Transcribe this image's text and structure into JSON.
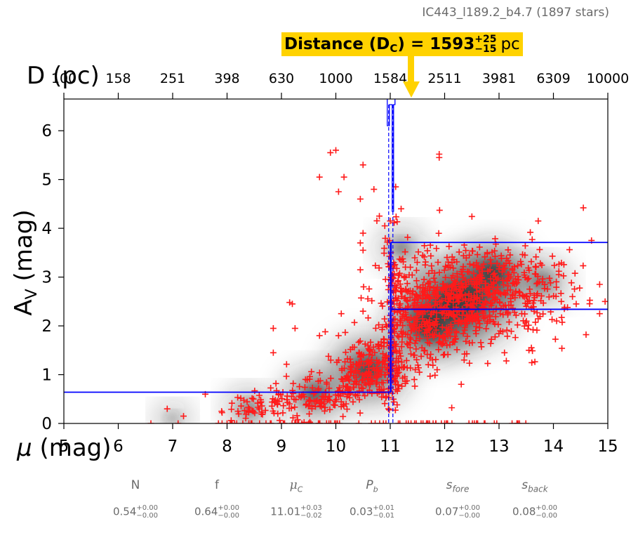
{
  "title": "IC443_l189.2_b4.7 (1897 stars)",
  "distance_label": {
    "text": "Distance (D",
    "sub": "C",
    "eq": ") = 1593",
    "plus": "+25",
    "minus": "−15",
    "unit": "pc"
  },
  "stats": [
    {
      "name": "N",
      "italic": false,
      "value": "0.54",
      "plus": "+0.00",
      "minus": "−0.00"
    },
    {
      "name": "f",
      "italic": false,
      "value": "0.64",
      "plus": "+0.00",
      "minus": "−0.00"
    },
    {
      "name": "μC",
      "italic": true,
      "value": "11.01",
      "plus": "+0.03",
      "minus": "−0.02"
    },
    {
      "name": "Pb",
      "italic": true,
      "value": "0.03",
      "plus": "+0.01",
      "minus": "−0.01"
    },
    {
      "name": "sfore",
      "italic": true,
      "value": "0.07",
      "plus": "+0.00",
      "minus": "−0.00"
    },
    {
      "name": "sback",
      "italic": true,
      "value": "0.08",
      "plus": "+0.00",
      "minus": "−0.00"
    }
  ],
  "colors": {
    "points": "#ff1a1a",
    "fit_lines": "#0000ff",
    "label_box": "#ffd200",
    "arrow": "#ffd200",
    "density": "#1a1a1a",
    "secondary_text": "#6b6b6b"
  },
  "chart_data": {
    "type": "scatter",
    "title": "IC443_l189.2_b4.7 (1897 stars)",
    "xlabel": "μ (mag)",
    "ylabel": "AV (mag)",
    "top_xlabel": "D (pc)",
    "xlim": [
      5,
      15
    ],
    "ylim": [
      0,
      6.65
    ],
    "x_ticks": [
      5,
      6,
      7,
      8,
      9,
      10,
      11,
      12,
      13,
      14,
      15
    ],
    "x_tick_labels": [
      "5",
      "6",
      "7",
      "8",
      "9",
      "10",
      "11",
      "12",
      "13",
      "14",
      "15"
    ],
    "y_ticks": [
      0,
      1,
      2,
      3,
      4,
      5,
      6
    ],
    "y_tick_labels": [
      "0",
      "1",
      "2",
      "3",
      "4",
      "5",
      "6"
    ],
    "top_tick_labels": [
      "100",
      "158",
      "251",
      "398",
      "630",
      "1000",
      "1584",
      "2511",
      "3981",
      "6309",
      "10000"
    ],
    "distance_modulus_cloud": 11.01,
    "distance_pc": 1593,
    "foreground_av": 0.64,
    "background_av_low": 2.34,
    "background_av_high": 3.71,
    "n_stars": 1897,
    "density_clusters": [
      {
        "x": 10.6,
        "y": 1.1,
        "w": 0.7
      },
      {
        "x": 12.3,
        "y": 2.5,
        "w": 1.0
      },
      {
        "x": 11.7,
        "y": 2.0,
        "w": 0.7
      },
      {
        "x": 9.6,
        "y": 0.6,
        "w": 0.5
      },
      {
        "x": 12.9,
        "y": 3.1,
        "w": 0.6
      },
      {
        "x": 8.4,
        "y": 0.3,
        "w": 0.35
      },
      {
        "x": 13.8,
        "y": 2.9,
        "w": 0.4
      },
      {
        "x": 7.0,
        "y": 0.1,
        "w": 0.25
      },
      {
        "x": 11.2,
        "y": 3.6,
        "w": 0.35
      }
    ],
    "points": [
      [
        9.9,
        5.55
      ],
      [
        10.0,
        5.6
      ],
      [
        9.7,
        5.05
      ],
      [
        10.15,
        5.05
      ],
      [
        10.5,
        5.3
      ],
      [
        10.7,
        4.8
      ],
      [
        10.45,
        4.6
      ],
      [
        10.05,
        4.75
      ],
      [
        11.9,
        5.45
      ],
      [
        11.9,
        5.52
      ],
      [
        14.55,
        4.42
      ],
      [
        13.72,
        4.15
      ],
      [
        10.45,
        3.7
      ],
      [
        10.5,
        3.9
      ],
      [
        10.5,
        3.55
      ],
      [
        10.45,
        3.15
      ],
      [
        9.15,
        2.48
      ],
      [
        9.2,
        2.45
      ],
      [
        9.25,
        1.95
      ],
      [
        8.85,
        1.95
      ],
      [
        8.85,
        1.45
      ],
      [
        9.7,
        1.8
      ],
      [
        10.1,
        2.25
      ],
      [
        10.5,
        2.3
      ],
      [
        6.9,
        0.3
      ],
      [
        7.1,
        0.0
      ],
      [
        6.6,
        0.0
      ],
      [
        7.2,
        0.15
      ],
      [
        7.6,
        0.6
      ],
      [
        7.9,
        0.25
      ],
      [
        8.0,
        0.0
      ],
      [
        8.2,
        0.25
      ],
      [
        14.7,
        3.75
      ],
      [
        14.85,
        2.85
      ],
      [
        14.95,
        2.5
      ],
      [
        14.6,
        1.82
      ],
      [
        14.85,
        2.25
      ],
      [
        13.55,
        1.5
      ],
      [
        13.1,
        1.45
      ],
      [
        13.8,
        2.9
      ],
      [
        14.1,
        3.05
      ],
      [
        14.2,
        2.35
      ],
      [
        14.35,
        2.6
      ],
      [
        11.1,
        4.85
      ],
      [
        11.2,
        4.4
      ],
      [
        10.9,
        4.05
      ],
      [
        10.8,
        4.25
      ],
      [
        11.0,
        4.15
      ]
    ]
  }
}
